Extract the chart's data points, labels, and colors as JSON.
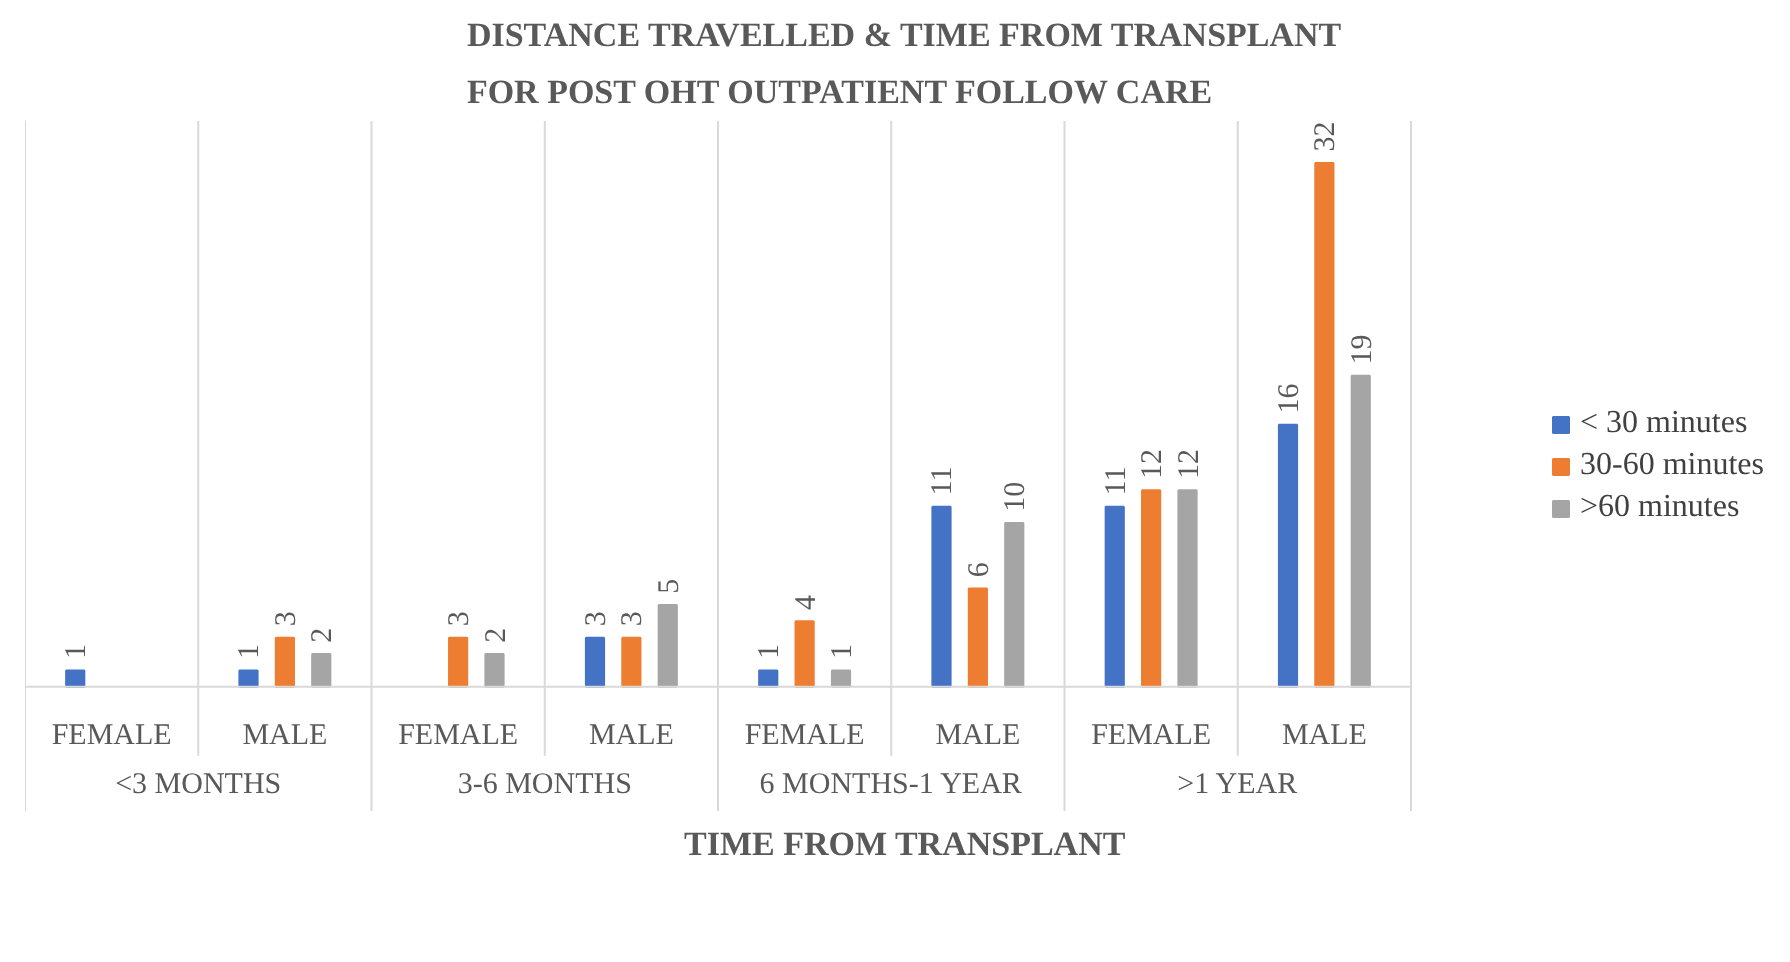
{
  "chart_data": {
    "type": "bar",
    "title": "DISTANCE TRAVELLED & TIME FROM TRANSPLANT FOR POST OHT OUTPATIENT FOLLOW CARE",
    "xlabel": "TIME FROM TRANSPLANT",
    "categories": [
      "FEMALE",
      "MALE",
      "FEMALE",
      "MALE",
      "FEMALE",
      "MALE",
      "FEMALE",
      "MALE"
    ],
    "annotations": [
      "<3 MONTHS",
      "3-6 MONTHS",
      "6 MONTHS-1 YEAR",
      ">1 YEAR"
    ],
    "series": [
      {
        "name": "< 30 minutes",
        "color": "#4472c4",
        "values": [
          1,
          1,
          null,
          3,
          1,
          11,
          11,
          16
        ]
      },
      {
        "name": "30-60 minutes",
        "color": "#ed7d31",
        "values": [
          null,
          3,
          3,
          3,
          4,
          6,
          12,
          32
        ]
      },
      {
        "name": ">60 minutes",
        "color": "#a5a5a5",
        "values": [
          null,
          2,
          2,
          5,
          1,
          10,
          12,
          19
        ]
      }
    ],
    "data_labels": true,
    "grid": false,
    "legend": "right"
  }
}
